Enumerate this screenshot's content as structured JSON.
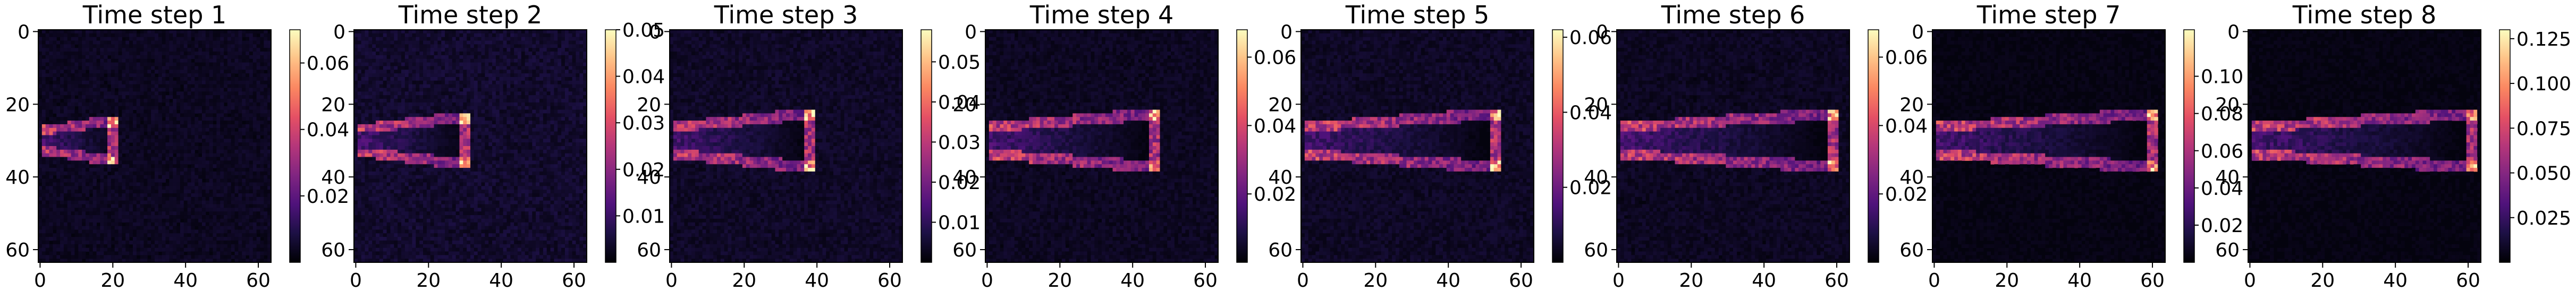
{
  "chart_data": {
    "type": "heatmap",
    "colormap": "magma",
    "grid_size": 64,
    "plume": {
      "centerline_row": 30,
      "source_col": 2,
      "notes_hidden": false
    },
    "panels": [
      {
        "title": "Time step 1",
        "x_ticks": [
          "0",
          "20",
          "40",
          "60"
        ],
        "y_ticks": [
          "0",
          "20",
          "40",
          "60"
        ],
        "colorbar": {
          "min": 0.0,
          "max": 0.07,
          "ticks": [
            "0.02",
            "0.04",
            "0.06"
          ]
        },
        "front": 20,
        "width": 7,
        "vmax": 0.07
      },
      {
        "title": "Time step 2",
        "x_ticks": [
          "0",
          "20",
          "40",
          "60"
        ],
        "y_ticks": [
          "0",
          "20",
          "40",
          "60"
        ],
        "colorbar": {
          "min": 0.0,
          "max": 0.05,
          "ticks": [
            "0.01",
            "0.02",
            "0.03",
            "0.04",
            "0.05"
          ]
        },
        "front": 30,
        "width": 8,
        "vmax": 0.05
      },
      {
        "title": "Time step 3",
        "x_ticks": [
          "0",
          "20",
          "40",
          "60"
        ],
        "y_ticks": [
          "0",
          "20",
          "40",
          "60"
        ],
        "colorbar": {
          "min": 0.0,
          "max": 0.058,
          "ticks": [
            "0.01",
            "0.02",
            "0.03",
            "0.04",
            "0.05"
          ]
        },
        "front": 38,
        "width": 9,
        "vmax": 0.058
      },
      {
        "title": "Time step 4",
        "x_ticks": [
          "0",
          "20",
          "40",
          "60"
        ],
        "y_ticks": [
          "0",
          "20",
          "40",
          "60"
        ],
        "colorbar": {
          "min": 0.0,
          "max": 0.068,
          "ticks": [
            "0.02",
            "0.04",
            "0.06"
          ]
        },
        "front": 46,
        "width": 9,
        "vmax": 0.068
      },
      {
        "title": "Time step 5",
        "x_ticks": [
          "0",
          "20",
          "40",
          "60"
        ],
        "y_ticks": [
          "0",
          "20",
          "40",
          "60"
        ],
        "colorbar": {
          "min": 0.0,
          "max": 0.062,
          "ticks": [
            "0.02",
            "0.04",
            "0.06"
          ]
        },
        "front": 53,
        "width": 9,
        "vmax": 0.062
      },
      {
        "title": "Time step 6",
        "x_ticks": [
          "0",
          "20",
          "40",
          "60"
        ],
        "y_ticks": [
          "0",
          "20",
          "40",
          "60"
        ],
        "colorbar": {
          "min": 0.0,
          "max": 0.068,
          "ticks": [
            "0.02",
            "0.04",
            "0.06"
          ]
        },
        "front": 59,
        "width": 9,
        "vmax": 0.068
      },
      {
        "title": "Time step 7",
        "x_ticks": [
          "0",
          "20",
          "40",
          "60"
        ],
        "y_ticks": [
          "0",
          "20",
          "40",
          "60"
        ],
        "colorbar": {
          "min": 0.0,
          "max": 0.125,
          "ticks": [
            "0.02",
            "0.04",
            "0.06",
            "0.08",
            "0.10"
          ]
        },
        "front": 60,
        "width": 9,
        "vmax": 0.125
      },
      {
        "title": "Time step 8",
        "x_ticks": [
          "0",
          "20",
          "40",
          "60"
        ],
        "y_ticks": [
          "0",
          "20",
          "40",
          "60"
        ],
        "colorbar": {
          "min": 0.0,
          "max": 0.13,
          "ticks": [
            "0.025",
            "0.050",
            "0.075",
            "0.100",
            "0.125"
          ]
        },
        "front": 61,
        "width": 9,
        "vmax": 0.13
      }
    ]
  }
}
